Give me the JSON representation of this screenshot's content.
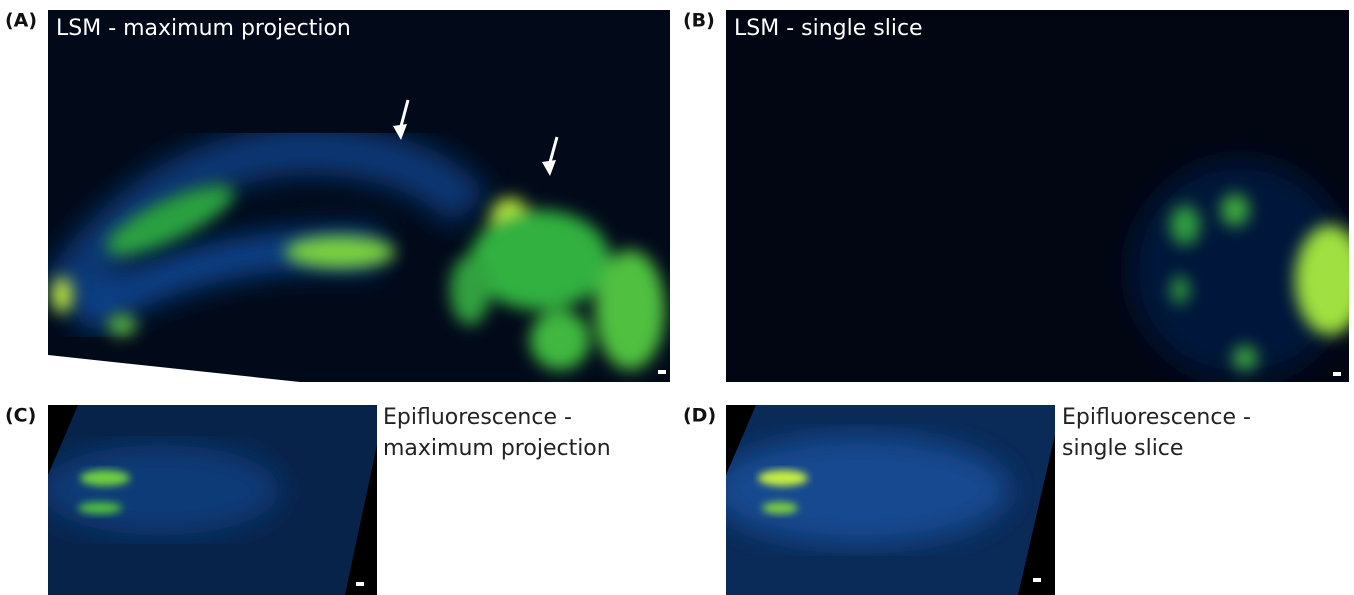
{
  "panels": [
    {
      "letter": "(A)",
      "caption": "LSM - maximum projection"
    },
    {
      "letter": "(B)",
      "caption": "LSM - single slice"
    },
    {
      "letter": "(C)",
      "caption_lines": [
        "Epifluorescence -",
        "maximum projection"
      ]
    },
    {
      "letter": "(D)",
      "caption_lines": [
        "Epifluorescence -",
        "single slice"
      ]
    }
  ]
}
